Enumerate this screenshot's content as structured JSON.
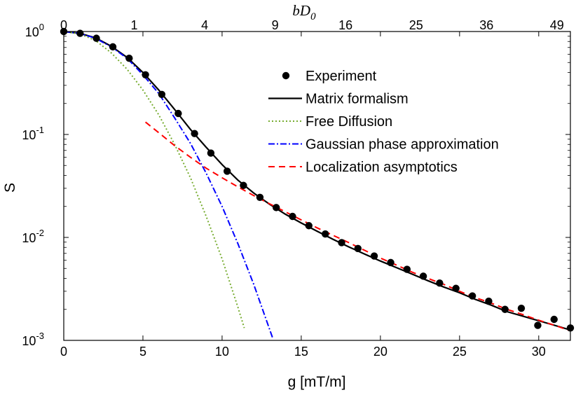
{
  "chart_data": {
    "type": "line",
    "y_scale": "log",
    "xlabel": "g [mT/m]",
    "ylabel": "S",
    "top_xlabel_main": "bD",
    "top_xlabel_sub": "0",
    "xlim": [
      0,
      32
    ],
    "ylim": [
      0.001,
      1
    ],
    "x_ticks": [
      0,
      5,
      10,
      15,
      20,
      25,
      30
    ],
    "x_tick_labels": [
      "0",
      "5",
      "10",
      "15",
      "20",
      "25",
      "30"
    ],
    "y_ticks": [
      {
        "value": 1,
        "base": "10",
        "exp": "0"
      },
      {
        "value": 0.1,
        "base": "10",
        "exp": "-1"
      },
      {
        "value": 0.01,
        "base": "10",
        "exp": "-2"
      },
      {
        "value": 0.001,
        "base": "10",
        "exp": "-3"
      }
    ],
    "top_ticks": [
      {
        "label": "0",
        "g": 0
      },
      {
        "label": "1",
        "g": 4.45
      },
      {
        "label": "4",
        "g": 8.9
      },
      {
        "label": "9",
        "g": 13.35
      },
      {
        "label": "16",
        "g": 17.8
      },
      {
        "label": "25",
        "g": 22.25
      },
      {
        "label": "36",
        "g": 26.7
      },
      {
        "label": "49",
        "g": 31.15
      }
    ],
    "series": [
      {
        "name": "Experiment",
        "style": "markers",
        "color": "#000000",
        "x": [
          0,
          1.03,
          2.06,
          3.1,
          4.13,
          5.16,
          6.19,
          7.23,
          8.26,
          9.29,
          10.32,
          11.35,
          12.39,
          13.42,
          14.45,
          15.48,
          16.52,
          17.55,
          18.58,
          19.61,
          20.65,
          21.68,
          22.71,
          23.74,
          24.77,
          25.81,
          26.84,
          27.87,
          28.9,
          29.94,
          30.97,
          32.0
        ],
        "y": [
          1.0,
          0.96,
          0.86,
          0.71,
          0.55,
          0.38,
          0.245,
          0.16,
          0.102,
          0.066,
          0.044,
          0.032,
          0.0245,
          0.0195,
          0.016,
          0.013,
          0.0108,
          0.0089,
          0.0078,
          0.0066,
          0.0057,
          0.0049,
          0.0042,
          0.0036,
          0.0032,
          0.0027,
          0.0024,
          0.002,
          0.00205,
          0.0014,
          0.0016,
          0.00132
        ]
      },
      {
        "name": "Matrix formalism",
        "style": "solid",
        "color": "#000000",
        "x": [
          0,
          1,
          2,
          3,
          4,
          5,
          6,
          7,
          8,
          9,
          10,
          11,
          12,
          13,
          14,
          15,
          16,
          17,
          18,
          19,
          20,
          21,
          22,
          23,
          24,
          25,
          26,
          27,
          28,
          29,
          30,
          31,
          32
        ],
        "y": [
          1.0,
          0.96,
          0.87,
          0.72,
          0.56,
          0.4,
          0.27,
          0.175,
          0.112,
          0.075,
          0.051,
          0.036,
          0.027,
          0.021,
          0.0168,
          0.0138,
          0.0115,
          0.0096,
          0.0081,
          0.0069,
          0.0059,
          0.0051,
          0.0044,
          0.0038,
          0.0033,
          0.0029,
          0.0025,
          0.0022,
          0.0019,
          0.00172,
          0.00155,
          0.0014,
          0.00126
        ]
      },
      {
        "name": "Free Diffusion",
        "style": "dotted",
        "color": "#77AC30",
        "x": [
          0,
          1,
          2,
          3,
          4,
          5,
          6,
          7,
          8,
          9,
          10,
          11,
          11.4
        ],
        "y": [
          1.0,
          0.95,
          0.82,
          0.62,
          0.43,
          0.27,
          0.155,
          0.08,
          0.038,
          0.016,
          0.0062,
          0.0021,
          0.00132
        ]
      },
      {
        "name": "Gaussian phase approximation",
        "style": "dashdot",
        "color": "#0000FF",
        "x": [
          0,
          1,
          2,
          3,
          4,
          5,
          6,
          7,
          8,
          9,
          10,
          11,
          12,
          13.2
        ],
        "y": [
          1.0,
          0.96,
          0.86,
          0.71,
          0.55,
          0.38,
          0.25,
          0.145,
          0.082,
          0.042,
          0.02,
          0.0087,
          0.0035,
          0.00105
        ]
      },
      {
        "name": "Localization asymptotics",
        "style": "dashed",
        "color": "#FF0000",
        "x": [
          5.16,
          6,
          7,
          8,
          9,
          10,
          11,
          12,
          13,
          14,
          15,
          16,
          17,
          18,
          19,
          20,
          21,
          22,
          23,
          24,
          25,
          26,
          27,
          28,
          29,
          30,
          31,
          32
        ],
        "y": [
          0.132,
          0.104,
          0.078,
          0.06,
          0.047,
          0.038,
          0.031,
          0.0255,
          0.0212,
          0.0177,
          0.0148,
          0.0124,
          0.0105,
          0.0089,
          0.0075,
          0.0063,
          0.0054,
          0.0046,
          0.004,
          0.0035,
          0.003,
          0.0026,
          0.0023,
          0.002,
          0.00178,
          0.00157,
          0.0014,
          0.00124
        ]
      }
    ],
    "legend": {
      "placement": "top-right",
      "entries": [
        "Experiment",
        "Matrix formalism",
        "Free Diffusion",
        "Gaussian phase approximation",
        "Localization asymptotics"
      ]
    }
  }
}
